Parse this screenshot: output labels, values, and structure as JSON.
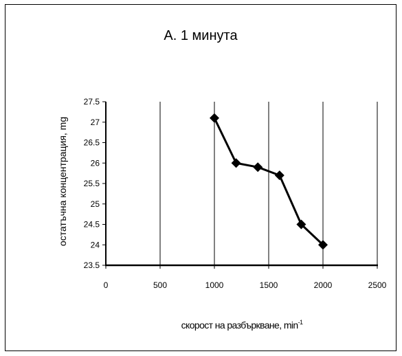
{
  "chart_data": {
    "type": "line",
    "title": "A. 1 минута",
    "xlabel": "скорост на разбъркване, min",
    "xlabel_superscript": "-1",
    "ylabel": "остатъчна концентрация, mg",
    "x": [
      1000,
      1200,
      1400,
      1600,
      1800,
      2000
    ],
    "series": [
      {
        "values": [
          27.1,
          26.0,
          25.9,
          25.7,
          24.5,
          24.0
        ]
      }
    ],
    "xlim": [
      0,
      2500
    ],
    "ylim": [
      23.5,
      27.5
    ],
    "xticks": [
      0,
      500,
      1000,
      1500,
      2000,
      2500
    ],
    "yticks": [
      23.5,
      24,
      24.5,
      25,
      25.5,
      26,
      26.5,
      27,
      27.5
    ],
    "grid": {
      "vertical": true,
      "horizontal": false
    },
    "marker": "diamond",
    "colors": {
      "line": "#000000",
      "marker": "#000000",
      "axis": "#000000"
    }
  }
}
